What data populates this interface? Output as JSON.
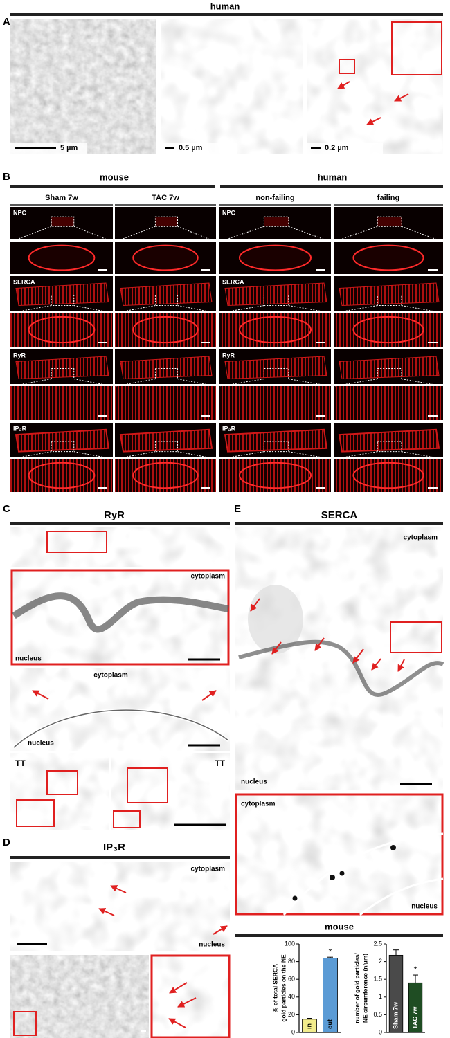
{
  "panels": {
    "A": {
      "letter": "A",
      "title": "human",
      "scale_bars": [
        "5 µm",
        "0.5 µm",
        "0.2 µm"
      ]
    },
    "B": {
      "letter": "B",
      "groups": [
        "mouse",
        "human"
      ],
      "columns": [
        "Sham 7w",
        "TAC 7w",
        "non-failing",
        "failing"
      ],
      "rows": [
        "NPC",
        "SERCA",
        "RyR",
        "IP₃R"
      ]
    },
    "C": {
      "letter": "C",
      "title": "RyR",
      "labels": [
        "cytoplasm",
        "nucleus",
        "cytoplasm",
        "nucleus",
        "TT",
        "TT"
      ]
    },
    "D": {
      "letter": "D",
      "title": "IP₃R",
      "labels": [
        "cytoplasm",
        "nucleus"
      ]
    },
    "E": {
      "letter": "E",
      "title": "SERCA",
      "labels": [
        "cytoplasm",
        "nucleus",
        "cytoplasm",
        "nucleus"
      ],
      "charts_title": "mouse"
    }
  },
  "chart_data": [
    {
      "type": "bar",
      "ylabel": [
        "% of total SERCA",
        "gold particles on the NE"
      ],
      "categories": [
        "in",
        "out"
      ],
      "values": [
        15,
        84
      ],
      "errors": [
        1,
        1
      ],
      "colors": [
        "#f2ec8c",
        "#5b9bd5"
      ],
      "significance": [
        null,
        "*"
      ],
      "ylim": [
        0,
        100
      ],
      "yticks": [
        0,
        20,
        40,
        60,
        80,
        100
      ]
    },
    {
      "type": "bar",
      "ylabel": [
        "number of gold particles/",
        "NE circumference (n/µm)"
      ],
      "categories": [
        "Sham 7w",
        "TAC 7w"
      ],
      "values": [
        2.18,
        1.4
      ],
      "errors": [
        0.15,
        0.22
      ],
      "colors": [
        "#4a4a4a",
        "#1f4d23"
      ],
      "significance": [
        null,
        "*"
      ],
      "ylim": [
        0,
        2.5
      ],
      "yticks": [
        0,
        0.5,
        1,
        1.5,
        2,
        2.5
      ]
    }
  ]
}
